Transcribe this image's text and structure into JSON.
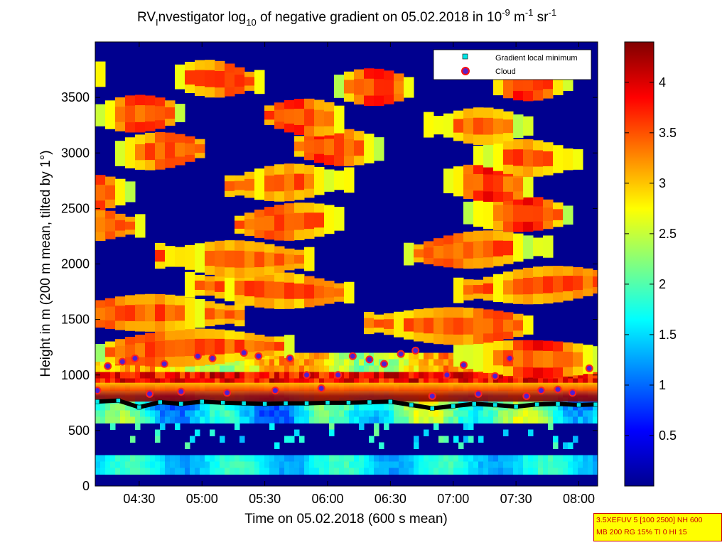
{
  "chart_data": {
    "type": "heatmap",
    "title_parts": [
      "RV",
      "I",
      "nvestigator log",
      "10",
      " of negative gradient on 05.02.2018 in 10",
      "-9",
      " m",
      "-1",
      " sr",
      "-1"
    ],
    "xlabel": "Time on 05.02.2018 (600 s mean)",
    "ylabel": "Height in m (200 m mean, tilted by 1°)",
    "x_range": [
      "04:09",
      "08:09"
    ],
    "x_ticks": [
      "04:30",
      "05:00",
      "05:30",
      "06:00",
      "06:30",
      "07:00",
      "07:30",
      "08:00"
    ],
    "y_range": [
      0,
      4000
    ],
    "y_ticks": [
      "0",
      "500",
      "1000",
      "1500",
      "2000",
      "2500",
      "3000",
      "3500"
    ],
    "colorbar": {
      "range": [
        0,
        4.4
      ],
      "ticks": [
        "0.5",
        "1",
        "1.5",
        "2",
        "2.5",
        "3",
        "3.5",
        "4"
      ],
      "colormap": "jet"
    },
    "legend": {
      "position": "top-right",
      "entries": [
        {
          "label": "Gradient local minimum",
          "marker": "square",
          "color": "#00e5e5"
        },
        {
          "label": "Cloud",
          "marker": "circle",
          "color": "#cc0000"
        }
      ]
    },
    "series": [
      {
        "name": "Gradient local minimum",
        "x": [
          "04:10",
          "04:20",
          "04:30",
          "04:40",
          "04:50",
          "05:00",
          "05:10",
          "05:20",
          "05:30",
          "05:40",
          "05:50",
          "06:00",
          "06:10",
          "06:20",
          "06:30",
          "06:40",
          "06:50",
          "07:00",
          "07:10",
          "07:20",
          "07:30",
          "07:40",
          "07:50",
          "08:00",
          "08:08"
        ],
        "y": [
          760,
          770,
          710,
          755,
          740,
          760,
          750,
          745,
          740,
          745,
          745,
          750,
          750,
          755,
          760,
          730,
          700,
          720,
          740,
          730,
          715,
          735,
          740,
          730,
          735
        ]
      },
      {
        "name": "Cloud",
        "x": [
          "04:10",
          "04:15",
          "04:22",
          "04:28",
          "04:35",
          "04:42",
          "04:50",
          "04:58",
          "05:05",
          "05:12",
          "05:20",
          "05:27",
          "05:35",
          "05:42",
          "05:50",
          "05:57",
          "06:05",
          "06:12",
          "06:20",
          "06:27",
          "06:35",
          "06:42",
          "06:50",
          "06:57",
          "07:05",
          "07:12",
          "07:20",
          "07:27",
          "07:35",
          "07:42",
          "07:50",
          "07:57",
          "08:05"
        ],
        "y": [
          860,
          1080,
          1120,
          1150,
          830,
          1100,
          850,
          1170,
          1150,
          840,
          1200,
          1170,
          860,
          1150,
          1000,
          880,
          1000,
          1170,
          1140,
          1100,
          1190,
          1220,
          810,
          1000,
          1090,
          830,
          990,
          1150,
          810,
          860,
          870,
          840,
          1060
        ]
      }
    ]
  },
  "infobox": {
    "line1": "3.5XEFUV 5 [100 2500] NH 600",
    "line2": "MB 200 RG 15% TI 0 HI 15"
  }
}
